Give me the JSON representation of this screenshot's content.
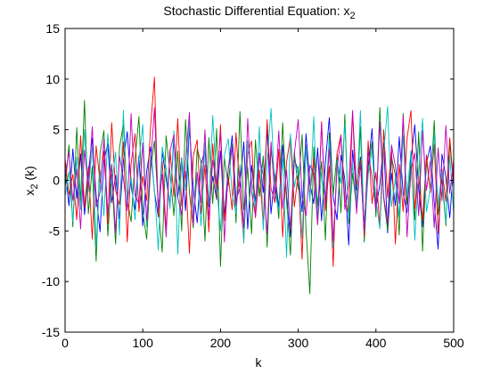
{
  "chart_data": {
    "type": "line",
    "title": "Stochastic Differential Equation: x",
    "title_subscript": "2",
    "xlabel": "k",
    "ylabel_main": "x",
    "ylabel_subscript": "2",
    "ylabel_suffix": " (k)",
    "xlim": [
      0,
      500
    ],
    "ylim": [
      -15,
      15
    ],
    "xticks": [
      0,
      100,
      200,
      300,
      400,
      500
    ],
    "yticks": [
      -15,
      -10,
      -5,
      0,
      5,
      10,
      15
    ],
    "grid": false,
    "legend": "none",
    "x": {
      "start": 0,
      "end": 500,
      "step": 5
    },
    "series": [
      {
        "color": "#0000ff",
        "values": [
          1.2,
          -2.5,
          3.1,
          -1.8,
          2.6,
          -3.4,
          0.8,
          4.2,
          -1.5,
          -5.1,
          2.0,
          3.6,
          -2.2,
          0.5,
          -3.8,
          1.9,
          4.8,
          -0.6,
          -2.9,
          2.4,
          -4.5,
          0.9,
          3.3,
          -1.1,
          -3.6,
          2.8,
          0.2,
          -2.4,
          4.1,
          -1.7,
          2.2,
          -3.0,
          5.4,
          -0.8,
          -4.2,
          1.6,
          3.0,
          -2.6,
          0.4,
          -1.9,
          2.9,
          -3.5,
          1.1,
          4.4,
          -2.0,
          -0.7,
          3.8,
          -4.8,
          1.5,
          -2.1,
          2.7,
          -1.2,
          5.0,
          -3.3,
          0.6,
          -2.7,
          3.5,
          -1.4,
          -5.6,
          2.1,
          0.9,
          -3.1,
          4.6,
          -0.3,
          -2.3,
          3.2,
          -4.0,
          1.8,
          6.2,
          -1.6,
          -3.9,
          2.5,
          0.1,
          -6.4,
          3.0,
          -1.0,
          2.3,
          -4.4,
          1.4,
          5.1,
          -2.8,
          -0.4,
          3.7,
          -5.2,
          0.7,
          -2.5,
          4.3,
          -1.3,
          -3.2,
          2.0,
          5.5,
          -0.9,
          -4.6,
          1.7,
          3.4,
          -2.2,
          -6.8,
          2.6,
          0.3,
          -3.7,
          1.5
        ]
      },
      {
        "color": "#008000",
        "values": [
          -0.8,
          3.5,
          -4.6,
          5.2,
          -2.1,
          7.9,
          -3.3,
          1.4,
          -8.0,
          2.7,
          4.9,
          -5.5,
          0.6,
          -6.3,
          3.2,
          5.6,
          -1.9,
          -4.1,
          2.0,
          6.3,
          -3.0,
          -5.8,
          1.1,
          3.9,
          -2.6,
          -7.1,
          4.4,
          0.8,
          -3.5,
          2.9,
          -5.0,
          6.0,
          -1.2,
          -4.7,
          3.1,
          1.7,
          -6.0,
          4.2,
          -2.3,
          5.1,
          -8.5,
          2.2,
          -0.5,
          3.6,
          -4.2,
          6.8,
          -2.9,
          1.3,
          -5.3,
          4.0,
          -1.6,
          2.4,
          -6.6,
          3.0,
          0.4,
          -3.8,
          5.7,
          -2.0,
          -7.4,
          2.8,
          -0.9,
          4.5,
          -4.8,
          -11.2,
          3.3,
          -2.5,
          1.9,
          -5.9,
          4.7,
          -1.4,
          2.6,
          -3.2,
          6.5,
          -4.3,
          0.7,
          -2.7,
          5.3,
          -6.1,
          1.2,
          3.8,
          -3.6,
          7.2,
          -1.8,
          -4.9,
          2.3,
          0.5,
          -5.4,
          6.6,
          -2.4,
          1.6,
          -3.9,
          4.8,
          -7.0,
          2.1,
          -1.1,
          5.9,
          -3.4,
          0.2,
          -4.5,
          3.7,
          -0.6
        ]
      },
      {
        "color": "#ff0000",
        "values": [
          2.1,
          -1.4,
          0.6,
          -3.9,
          4.4,
          -2.7,
          1.3,
          -5.8,
          3.4,
          -0.2,
          2.9,
          -4.3,
          5.7,
          -1.0,
          -2.4,
          3.8,
          -6.1,
          1.7,
          4.6,
          -3.1,
          0.4,
          -2.0,
          5.2,
          10.2,
          -3.6,
          1.9,
          -4.9,
          3.0,
          -1.6,
          6.1,
          -2.5,
          0.9,
          -7.2,
          2.4,
          4.0,
          -3.3,
          1.5,
          -5.1,
          3.6,
          -1.8,
          5.5,
          -4.0,
          0.3,
          -2.9,
          4.7,
          -1.3,
          -6.0,
          2.6,
          3.9,
          -3.7,
          1.0,
          -4.4,
          6.0,
          -0.8,
          -2.2,
          3.1,
          -5.6,
          1.8,
          4.3,
          -2.6,
          0.7,
          -7.8,
          3.5,
          -1.5,
          2.2,
          -4.1,
          5.8,
          -3.0,
          1.4,
          -8.5,
          2.7,
          4.5,
          -1.9,
          -3.4,
          6.7,
          -0.5,
          2.0,
          -5.5,
          3.9,
          -2.3,
          0.8,
          -4.6,
          5.0,
          -1.7,
          3.2,
          -6.3,
          1.6,
          -3.1,
          4.1,
          6.9,
          -2.8,
          0.5,
          -4.0,
          2.5,
          -1.2,
          3.6,
          -5.3,
          1.1,
          -2.1,
          4.2,
          -0.4
        ]
      },
      {
        "color": "#00bfbf",
        "values": [
          -1.6,
          0.9,
          -4.1,
          2.3,
          -2.9,
          5.0,
          -1.1,
          3.4,
          -6.5,
          1.0,
          -3.5,
          4.6,
          -0.4,
          2.8,
          -5.4,
          6.9,
          -2.2,
          0.3,
          -3.9,
          1.9,
          5.5,
          -4.6,
          2.6,
          -0.9,
          -6.9,
          3.3,
          1.2,
          -2.8,
          4.9,
          -7.3,
          2.1,
          -1.0,
          5.9,
          -3.2,
          0.6,
          -4.5,
          3.7,
          -2.4,
          6.4,
          -0.6,
          -5.0,
          2.5,
          4.1,
          -1.4,
          -3.3,
          1.6,
          -6.2,
          3.9,
          0.1,
          -2.6,
          5.3,
          -4.9,
          1.8,
          7.1,
          -1.2,
          -3.0,
          2.2,
          -7.6,
          4.6,
          -0.7,
          1.4,
          -5.7,
          3.4,
          -2.1,
          6.3,
          -4.3,
          0.8,
          -1.8,
          4.0,
          -6.7,
          2.0,
          -0.3,
          5.6,
          -3.8,
          1.5,
          -2.5,
          6.9,
          -5.0,
          0.5,
          3.0,
          -1.9,
          -4.8,
          2.7,
          7.3,
          -2.6,
          0.2,
          -3.6,
          4.4,
          -1.5,
          2.9,
          -5.9,
          1.0,
          6.1,
          -3.1,
          -0.8,
          4.6,
          -2.4,
          0.9,
          -4.2,
          2.4,
          -3.3
        ]
      },
      {
        "color": "#bf00bf",
        "values": [
          0.5,
          2.8,
          -2.0,
          1.1,
          -4.8,
          3.0,
          -0.7,
          5.3,
          -2.6,
          -1.2,
          4.1,
          -3.4,
          1.6,
          -5.2,
          2.4,
          0.2,
          -3.0,
          6.6,
          -1.5,
          -2.3,
          3.7,
          -4.0,
          1.3,
          7.2,
          -2.8,
          0.6,
          -5.6,
          2.9,
          4.5,
          -1.7,
          -3.4,
          1.8,
          6.7,
          -4.4,
          0.8,
          -2.2,
          5.0,
          -3.9,
          2.0,
          -0.4,
          4.8,
          -6.1,
          1.2,
          3.3,
          -2.5,
          0.9,
          -4.7,
          6.1,
          -1.1,
          -3.6,
          2.4,
          0.5,
          -5.3,
          3.8,
          -1.8,
          4.9,
          -2.8,
          1.0,
          -4.9,
          2.6,
          6.0,
          -1.6,
          -3.5,
          1.5,
          0.7,
          -4.4,
          5.6,
          -2.4,
          3.1,
          -6.0,
          1.1,
          4.4,
          -2.9,
          -0.5,
          6.9,
          -3.3,
          1.7,
          -5.1,
          2.8,
          0.3,
          -3.0,
          5.8,
          -1.6,
          -4.2,
          3.5,
          1.4,
          -2.3,
          6.4,
          -5.6,
          0.9,
          2.7,
          -3.5,
          4.9,
          -1.0,
          1.9,
          -4.7,
          3.2,
          -2.0,
          5.4,
          -1.3,
          2.0
        ]
      }
    ]
  }
}
